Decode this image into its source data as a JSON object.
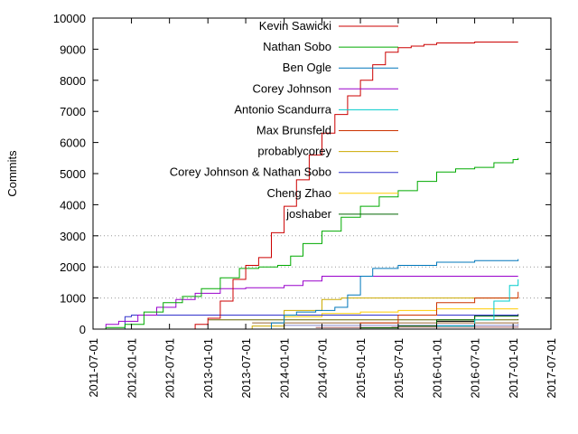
{
  "chart_data": {
    "type": "line",
    "title": "",
    "xlabel": "",
    "ylabel": "Commits",
    "ylim": [
      0,
      10000
    ],
    "xlim": [
      "2011-07-01",
      "2017-07-01"
    ],
    "y_ticks": [
      "0",
      "1000",
      "2000",
      "3000",
      "4000",
      "5000",
      "6000",
      "7000",
      "8000",
      "9000",
      "10000"
    ],
    "x_ticks": [
      "2011-07-01",
      "2012-01-01",
      "2012-07-01",
      "2013-01-01",
      "2013-07-01",
      "2014-01-01",
      "2014-07-01",
      "2015-01-01",
      "2015-07-01",
      "2016-01-01",
      "2016-07-01",
      "2017-01-01",
      "2017-07-01"
    ],
    "grid": "dotted horizontal lines at 1000, 2000 and 3000 only",
    "legend_position": "top-right",
    "series": [
      {
        "name": "Kevin Sawicki",
        "color": "#cc0000",
        "points": [
          [
            "2012-08-15",
            0
          ],
          [
            "2012-11-01",
            150
          ],
          [
            "2013-01-01",
            350
          ],
          [
            "2013-03-01",
            900
          ],
          [
            "2013-05-01",
            1600
          ],
          [
            "2013-07-01",
            2050
          ],
          [
            "2013-09-01",
            2300
          ],
          [
            "2013-11-01",
            3100
          ],
          [
            "2014-01-01",
            3950
          ],
          [
            "2014-03-01",
            4800
          ],
          [
            "2014-05-01",
            5600
          ],
          [
            "2014-07-01",
            6300
          ],
          [
            "2014-09-01",
            6900
          ],
          [
            "2014-11-01",
            7500
          ],
          [
            "2015-01-01",
            8000
          ],
          [
            "2015-03-01",
            8500
          ],
          [
            "2015-05-01",
            8900
          ],
          [
            "2015-07-01",
            9050
          ],
          [
            "2015-09-01",
            9100
          ],
          [
            "2015-11-01",
            9150
          ],
          [
            "2016-01-01",
            9200
          ],
          [
            "2016-07-01",
            9230
          ],
          [
            "2017-01-01",
            9230
          ],
          [
            "2017-01-25",
            9230
          ]
        ]
      },
      {
        "name": "Nathan Sobo",
        "color": "#00aa00",
        "points": [
          [
            "2011-08-20",
            0
          ],
          [
            "2011-09-01",
            50
          ],
          [
            "2011-12-01",
            150
          ],
          [
            "2012-03-01",
            550
          ],
          [
            "2012-06-01",
            850
          ],
          [
            "2012-09-01",
            1050
          ],
          [
            "2012-12-01",
            1300
          ],
          [
            "2013-03-01",
            1650
          ],
          [
            "2013-06-01",
            1950
          ],
          [
            "2013-09-01",
            2000
          ],
          [
            "2013-12-01",
            2050
          ],
          [
            "2014-02-01",
            2350
          ],
          [
            "2014-04-01",
            2750
          ],
          [
            "2014-07-01",
            3150
          ],
          [
            "2014-10-01",
            3600
          ],
          [
            "2015-01-01",
            3950
          ],
          [
            "2015-04-01",
            4250
          ],
          [
            "2015-07-01",
            4450
          ],
          [
            "2015-10-01",
            4750
          ],
          [
            "2016-01-01",
            5050
          ],
          [
            "2016-04-01",
            5150
          ],
          [
            "2016-07-01",
            5200
          ],
          [
            "2016-10-01",
            5350
          ],
          [
            "2017-01-01",
            5450
          ],
          [
            "2017-01-25",
            5500
          ]
        ]
      },
      {
        "name": "Ben Ogle",
        "color": "#0077bb",
        "points": [
          [
            "2013-09-01",
            0
          ],
          [
            "2013-11-01",
            200
          ],
          [
            "2014-01-01",
            450
          ],
          [
            "2014-03-01",
            550
          ],
          [
            "2014-06-01",
            600
          ],
          [
            "2014-09-01",
            700
          ],
          [
            "2014-11-01",
            1100
          ],
          [
            "2015-01-01",
            1700
          ],
          [
            "2015-03-01",
            1950
          ],
          [
            "2015-07-01",
            2050
          ],
          [
            "2016-01-01",
            2150
          ],
          [
            "2016-07-01",
            2200
          ],
          [
            "2017-01-25",
            2250
          ]
        ]
      },
      {
        "name": "Corey Johnson",
        "color": "#9900cc",
        "points": [
          [
            "2011-08-15",
            0
          ],
          [
            "2011-09-01",
            150
          ],
          [
            "2011-11-01",
            250
          ],
          [
            "2012-02-01",
            450
          ],
          [
            "2012-05-01",
            700
          ],
          [
            "2012-08-01",
            950
          ],
          [
            "2012-11-01",
            1150
          ],
          [
            "2013-03-01",
            1300
          ],
          [
            "2013-07-01",
            1330
          ],
          [
            "2014-01-01",
            1400
          ],
          [
            "2014-04-01",
            1550
          ],
          [
            "2014-07-01",
            1700
          ],
          [
            "2017-01-25",
            1700
          ]
        ]
      },
      {
        "name": "Antonio Scandurra",
        "color": "#00cccc",
        "points": [
          [
            "2015-09-01",
            0
          ],
          [
            "2016-01-01",
            100
          ],
          [
            "2016-07-01",
            300
          ],
          [
            "2016-10-01",
            900
          ],
          [
            "2016-12-15",
            1400
          ],
          [
            "2017-01-25",
            1600
          ]
        ]
      },
      {
        "name": "Max Brunsfeld",
        "color": "#cc3300",
        "points": [
          [
            "2014-09-01",
            0
          ],
          [
            "2015-01-01",
            200
          ],
          [
            "2015-07-01",
            450
          ],
          [
            "2016-01-01",
            850
          ],
          [
            "2016-07-01",
            1000
          ],
          [
            "2017-01-25",
            1200
          ]
        ]
      },
      {
        "name": "probablycorey",
        "color": "#ccaa00",
        "points": [
          [
            "2013-05-01",
            0
          ],
          [
            "2013-08-01",
            100
          ],
          [
            "2014-01-01",
            600
          ],
          [
            "2014-07-01",
            950
          ],
          [
            "2014-10-01",
            1000
          ],
          [
            "2017-01-25",
            1000
          ]
        ]
      },
      {
        "name": "Corey Johnson & Nathan Sobo",
        "color": "#3333cc",
        "points": [
          [
            "2011-11-01",
            0
          ],
          [
            "2011-12-01",
            400
          ],
          [
            "2012-01-01",
            450
          ],
          [
            "2017-01-25",
            450
          ]
        ]
      },
      {
        "name": "Cheng Zhao",
        "color": "#ffcc00",
        "points": [
          [
            "2013-07-01",
            0
          ],
          [
            "2014-01-01",
            400
          ],
          [
            "2014-07-01",
            500
          ],
          [
            "2015-01-01",
            550
          ],
          [
            "2015-07-01",
            600
          ],
          [
            "2016-01-01",
            650
          ],
          [
            "2017-01-25",
            650
          ]
        ]
      },
      {
        "name": "joshaber",
        "color": "#006600",
        "points": [
          [
            "2014-03-01",
            0
          ],
          [
            "2015-01-01",
            40
          ],
          [
            "2015-07-01",
            100
          ],
          [
            "2016-01-01",
            300
          ],
          [
            "2016-07-01",
            420
          ],
          [
            "2017-01-25",
            430
          ]
        ]
      }
    ],
    "minor_lines": [
      {
        "color": "#000000",
        "points": [
          [
            "2015-10-01",
            0
          ],
          [
            "2016-01-01",
            250
          ],
          [
            "2016-07-01",
            450
          ],
          [
            "2017-01-25",
            480
          ]
        ]
      },
      {
        "color": "#666600",
        "points": [
          [
            "2013-01-01",
            300
          ],
          [
            "2017-01-25",
            320
          ]
        ]
      },
      {
        "color": "#996633",
        "points": [
          [
            "2013-08-01",
            200
          ],
          [
            "2017-01-25",
            220
          ]
        ]
      },
      {
        "color": "#8888cc",
        "points": [
          [
            "2014-01-01",
            120
          ],
          [
            "2017-01-25",
            160
          ]
        ]
      },
      {
        "color": "#aa6666",
        "points": [
          [
            "2014-06-01",
            50
          ],
          [
            "2015-06-01",
            60
          ],
          [
            "2017-01-25",
            80
          ]
        ]
      }
    ]
  }
}
